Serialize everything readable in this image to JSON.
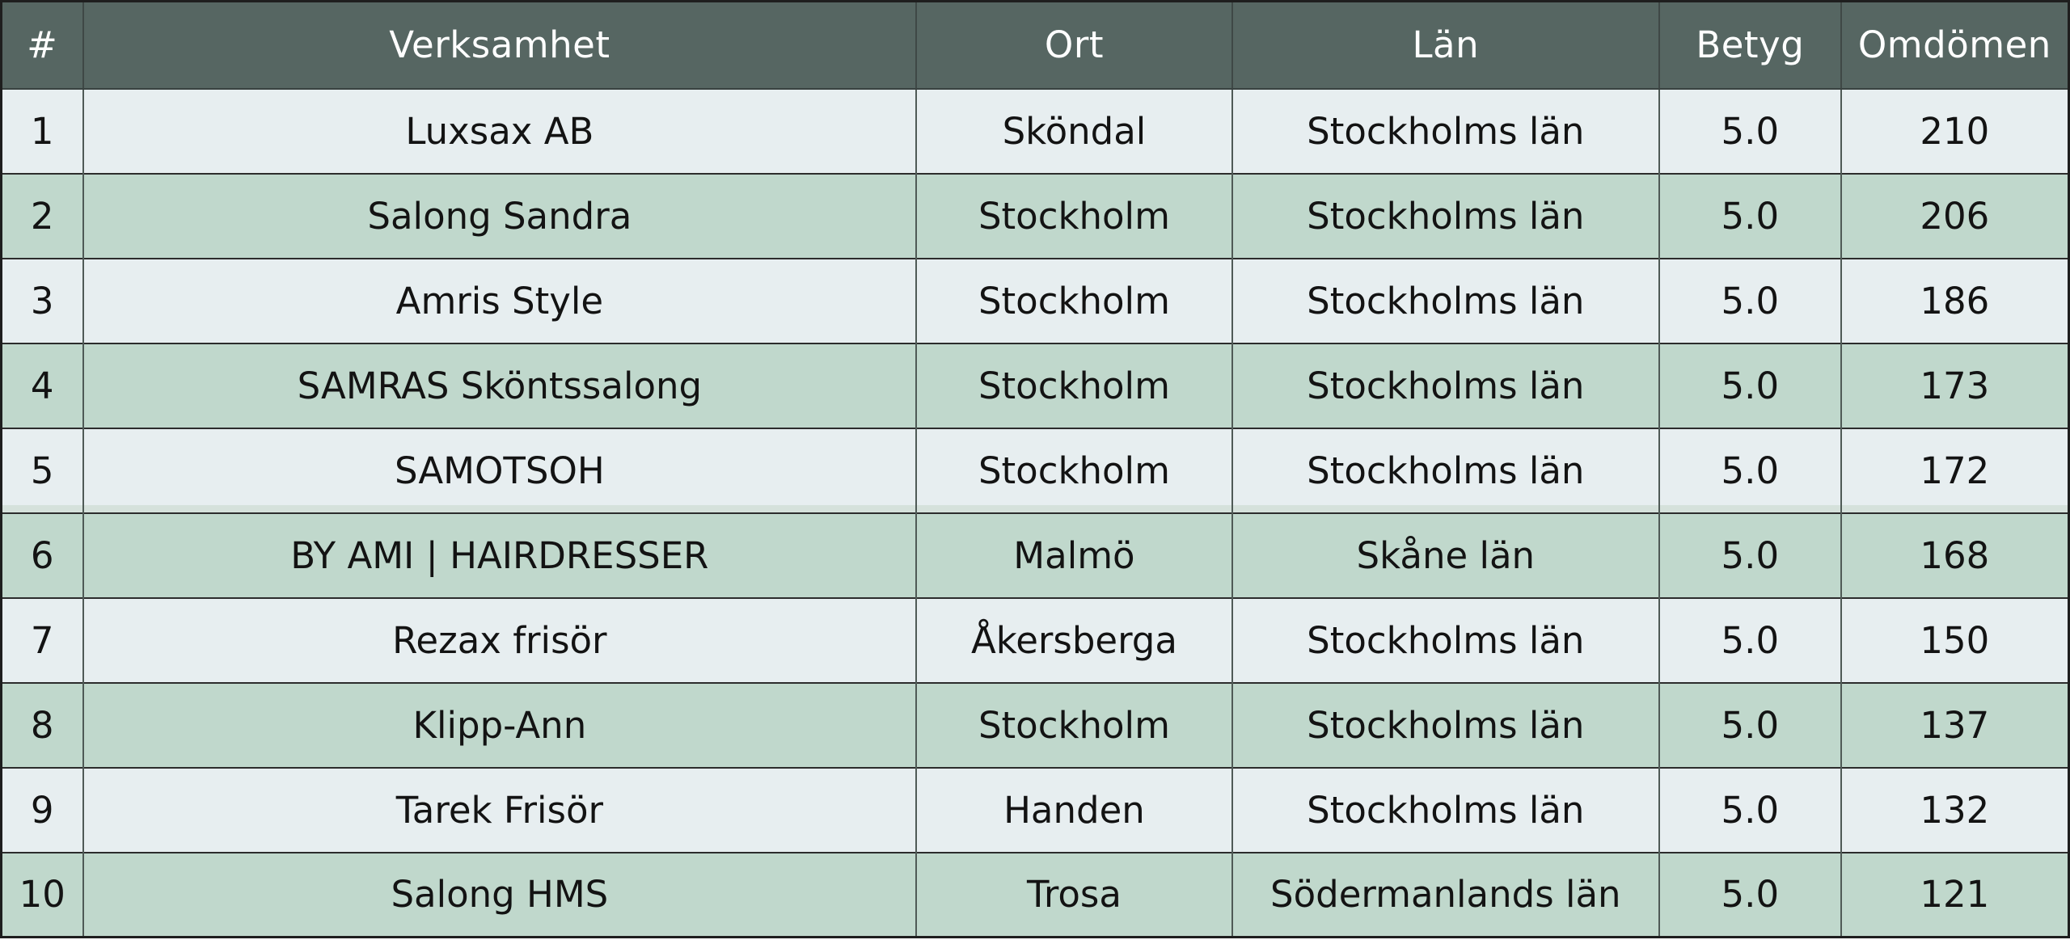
{
  "chart_data": {
    "type": "table",
    "title": "",
    "columns": [
      "#",
      "Verksamhet",
      "Ort",
      "Län",
      "Betyg",
      "Omdömen"
    ],
    "rows": [
      [
        "1",
        "Luxsax AB",
        "Sköndal",
        "Stockholms län",
        "5.0",
        "210"
      ],
      [
        "2",
        "Salong Sandra",
        "Stockholm",
        "Stockholms län",
        "5.0",
        "206"
      ],
      [
        "3",
        "Amris Style",
        "Stockholm",
        "Stockholms län",
        "5.0",
        "186"
      ],
      [
        "4",
        "SAMRAS Sköntssalong",
        "Stockholm",
        "Stockholms län",
        "5.0",
        "173"
      ],
      [
        "5",
        "SAMOTSOH",
        "Stockholm",
        "Stockholms län",
        "5.0",
        "172"
      ],
      [
        "6",
        "BY AMI | HAIRDRESSER",
        "Malmö",
        "Skåne län",
        "5.0",
        "168"
      ],
      [
        "7",
        "Rezax frisör",
        "Åkersberga",
        "Stockholms län",
        "5.0",
        "150"
      ],
      [
        "8",
        "Klipp-Ann",
        "Stockholm",
        "Stockholms län",
        "5.0",
        "137"
      ],
      [
        "9",
        "Tarek Frisör",
        "Handen",
        "Stockholms län",
        "5.0",
        "132"
      ],
      [
        "10",
        "Salong HMS",
        "Trosa",
        "Södermanlands län",
        "5.0",
        "121"
      ]
    ]
  },
  "colors": {
    "header_background": "#566662",
    "header_text": "#ffffff",
    "row_light": "#e7eef0",
    "row_green": "#c0d8cc",
    "border_horizontal": "#2c2c2c",
    "border_vertical": "#4f5a56",
    "outer_border": "#1e1e1e",
    "body_text": "#131313"
  }
}
